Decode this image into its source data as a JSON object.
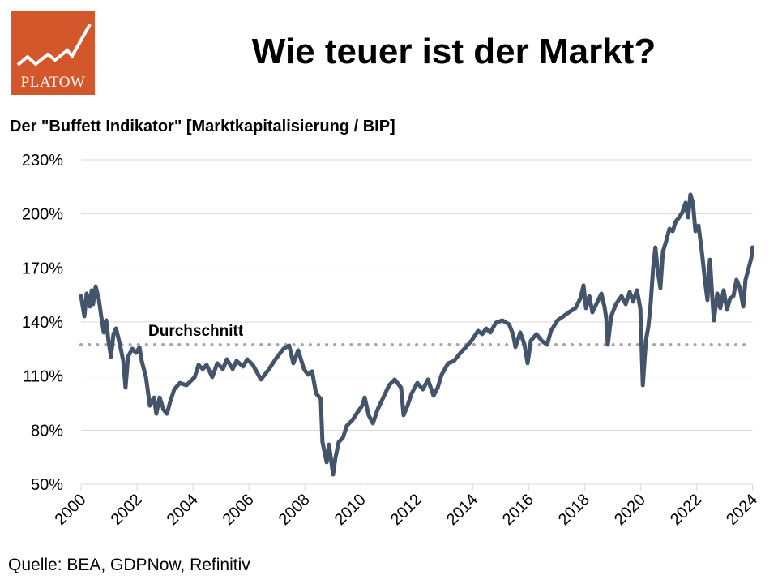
{
  "logo": {
    "text": "PLATOW",
    "color": "#d4572b"
  },
  "header": {
    "title": "Wie teuer ist der Markt?"
  },
  "footer": {
    "source": "Quelle: BEA, GDPNow, Refinitiv"
  },
  "chart_data": {
    "type": "line",
    "title": "Der \"Buffett Indikator\" [Marktkapitalisierung / BIP]",
    "xlabel": "",
    "ylabel": "",
    "xlim": [
      2000,
      2024
    ],
    "ylim": [
      50,
      230
    ],
    "grid": true,
    "yticks": [
      50,
      80,
      110,
      140,
      170,
      200,
      230
    ],
    "ytick_labels": [
      "50%",
      "80%",
      "110%",
      "140%",
      "170%",
      "200%",
      "230%"
    ],
    "xticks": [
      2000,
      2002,
      2004,
      2006,
      2008,
      2010,
      2012,
      2014,
      2016,
      2018,
      2020,
      2022,
      2024
    ],
    "xtick_labels": [
      "2000",
      "2002",
      "2004",
      "2006",
      "2008",
      "2010",
      "2012",
      "2014",
      "2016",
      "2018",
      "2020",
      "2022",
      "2024"
    ],
    "line_color": "#44546a",
    "average": {
      "label": "Durchschnitt",
      "value": 127.4,
      "color": "#a6a6a6"
    },
    "series": [
      {
        "name": "Buffett Indikator",
        "x": [
          2000.0,
          2000.12,
          2000.2,
          2000.32,
          2000.38,
          2000.43,
          2000.52,
          2000.64,
          2000.72,
          2000.81,
          2000.9,
          2000.98,
          2001.07,
          2001.16,
          2001.25,
          2001.39,
          2001.51,
          2001.59,
          2001.68,
          2001.83,
          2001.97,
          2002.09,
          2002.17,
          2002.32,
          2002.46,
          2002.61,
          2002.69,
          2002.81,
          2002.95,
          2003.07,
          2003.19,
          2003.33,
          2003.53,
          2003.77,
          2004.06,
          2004.2,
          2004.35,
          2004.49,
          2004.69,
          2004.87,
          2005.07,
          2005.21,
          2005.42,
          2005.56,
          2005.79,
          2005.94,
          2006.14,
          2006.43,
          2006.72,
          2006.95,
          2007.24,
          2007.44,
          2007.59,
          2007.76,
          2007.97,
          2008.11,
          2008.26,
          2008.4,
          2008.57,
          2008.63,
          2008.78,
          2008.86,
          2009.01,
          2009.09,
          2009.21,
          2009.36,
          2009.5,
          2009.7,
          2009.85,
          2010.05,
          2010.14,
          2010.28,
          2010.43,
          2010.6,
          2010.78,
          2011.01,
          2011.21,
          2011.44,
          2011.53,
          2011.67,
          2011.82,
          2012.02,
          2012.22,
          2012.4,
          2012.6,
          2012.75,
          2012.89,
          2013.12,
          2013.33,
          2013.56,
          2013.76,
          2013.96,
          2014.19,
          2014.34,
          2014.48,
          2014.63,
          2014.83,
          2015.06,
          2015.3,
          2015.44,
          2015.53,
          2015.7,
          2015.85,
          2015.96,
          2016.08,
          2016.28,
          2016.46,
          2016.66,
          2016.8,
          2017.03,
          2017.24,
          2017.44,
          2017.67,
          2017.85,
          2017.96,
          2018.05,
          2018.17,
          2018.28,
          2018.46,
          2018.6,
          2018.71,
          2018.77,
          2018.83,
          2018.95,
          2019.12,
          2019.32,
          2019.47,
          2019.61,
          2019.73,
          2019.87,
          2019.99,
          2020.08,
          2020.19,
          2020.28,
          2020.36,
          2020.45,
          2020.53,
          2020.62,
          2020.71,
          2020.8,
          2020.91,
          2021.03,
          2021.15,
          2021.26,
          2021.38,
          2021.49,
          2021.61,
          2021.7,
          2021.78,
          2021.87,
          2021.96,
          2022.07,
          2022.19,
          2022.3,
          2022.39,
          2022.48,
          2022.56,
          2022.62,
          2022.74,
          2022.85,
          2022.97,
          2023.09,
          2023.2,
          2023.32,
          2023.43,
          2023.55,
          2023.67,
          2023.75,
          2023.87,
          2023.96,
          2024.0
        ],
        "values": [
          154.4,
          143.2,
          155.8,
          148.6,
          157.6,
          149.9,
          159.8,
          152.2,
          143.2,
          134.2,
          140.9,
          129.7,
          120.7,
          133.3,
          136.4,
          127.4,
          118.4,
          103.6,
          120.7,
          125.2,
          122.9,
          126.0,
          118.4,
          109.4,
          93.6,
          98.1,
          89.1,
          98.1,
          91.4,
          89.1,
          95.9,
          102.6,
          106.2,
          104.9,
          109.4,
          116.2,
          113.9,
          116.2,
          109.4,
          117.1,
          113.9,
          119.3,
          113.9,
          118.4,
          115.3,
          119.3,
          116.2,
          108.1,
          113.9,
          119.3,
          125.2,
          127.0,
          117.1,
          124.3,
          113.9,
          110.8,
          112.6,
          100.4,
          97.3,
          73.4,
          62.2,
          72.0,
          55.4,
          64.4,
          73.4,
          75.7,
          82.4,
          85.6,
          89.1,
          93.6,
          98.1,
          88.3,
          83.8,
          91.4,
          97.3,
          104.9,
          108.1,
          103.6,
          88.3,
          93.6,
          100.4,
          106.2,
          102.6,
          108.1,
          99.1,
          103.6,
          110.8,
          117.1,
          118.4,
          122.9,
          126.1,
          129.7,
          135.1,
          133.3,
          136.4,
          134.2,
          139.6,
          140.9,
          138.7,
          133.3,
          126.1,
          134.2,
          127.4,
          117.1,
          129.7,
          133.3,
          129.7,
          127.4,
          135.1,
          140.9,
          143.2,
          145.4,
          147.7,
          153.1,
          160.3,
          147.7,
          154.4,
          145.4,
          151.3,
          155.8,
          148.6,
          142.3,
          127.4,
          143.2,
          149.9,
          154.4,
          149.9,
          156.7,
          151.3,
          157.6,
          147.7,
          104.9,
          129.7,
          137.7,
          149.9,
          170.2,
          181.4,
          167.9,
          158.9,
          179.1,
          184.5,
          191.7,
          190.4,
          195.8,
          198.1,
          200.8,
          206.2,
          198.1,
          210.7,
          206.2,
          190.4,
          193.5,
          179.1,
          163.4,
          152.2,
          174.6,
          154.4,
          140.9,
          155.8,
          147.7,
          157.6,
          146.8,
          153.1,
          154.4,
          163.4,
          158.9,
          148.6,
          163.4,
          170.2,
          175.6,
          181.4
        ]
      }
    ]
  }
}
